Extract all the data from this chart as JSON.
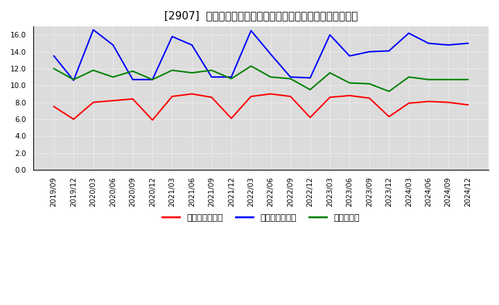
{
  "title": "[2907]  売上債権回転率、買入債務回転率、在庫回転率の推移",
  "x_labels": [
    "2019/09",
    "2019/12",
    "2020/03",
    "2020/06",
    "2020/09",
    "2020/12",
    "2021/03",
    "2021/06",
    "2021/09",
    "2021/12",
    "2022/03",
    "2022/06",
    "2022/09",
    "2022/12",
    "2023/03",
    "2023/06",
    "2023/09",
    "2023/12",
    "2024/03",
    "2024/06",
    "2024/09",
    "2024/12"
  ],
  "series": [
    {
      "name": "売上債権回転率",
      "color": "#ff0000",
      "values": [
        7.5,
        6.0,
        8.0,
        8.2,
        8.4,
        5.9,
        8.7,
        9.0,
        8.6,
        6.1,
        8.7,
        9.0,
        8.7,
        6.2,
        8.6,
        8.8,
        8.5,
        6.3,
        7.9,
        8.1,
        8.0,
        7.7
      ]
    },
    {
      "name": "買入債務回転率",
      "color": "#0000ff",
      "values": [
        13.5,
        10.6,
        16.6,
        14.8,
        10.7,
        10.7,
        15.8,
        14.8,
        11.0,
        11.0,
        16.5,
        13.7,
        11.0,
        10.9,
        16.0,
        13.5,
        14.0,
        14.1,
        16.2,
        15.0,
        14.8,
        15.0
      ]
    },
    {
      "name": "在庫回転率",
      "color": "#008000",
      "values": [
        12.0,
        10.7,
        11.8,
        11.0,
        11.7,
        10.7,
        11.8,
        11.5,
        11.8,
        10.8,
        12.3,
        11.0,
        10.8,
        9.5,
        11.5,
        10.3,
        10.2,
        9.3,
        11.0,
        10.7,
        10.7,
        10.7
      ]
    }
  ],
  "ylim": [
    0,
    17.0
  ],
  "yticks": [
    0.0,
    2.0,
    4.0,
    6.0,
    8.0,
    10.0,
    12.0,
    14.0,
    16.0
  ],
  "background_color": "#ffffff",
  "plot_bg_color": "#dcdcdc",
  "grid_color": "#ffffff",
  "title_fontsize": 11,
  "tick_fontsize": 7.5,
  "legend_fontsize": 9
}
